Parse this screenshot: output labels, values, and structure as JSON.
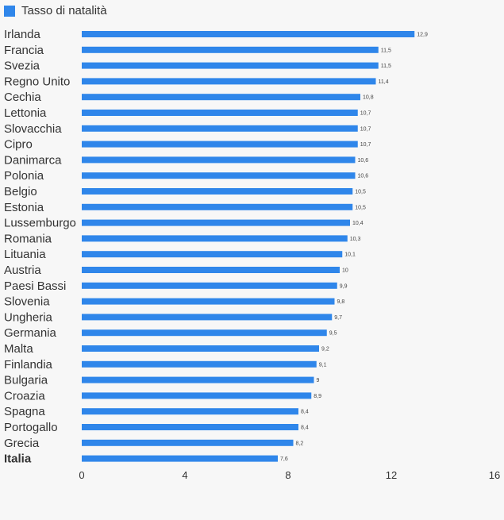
{
  "colors": {
    "bar": "#2f86ea",
    "background": "#f7f7f7",
    "text": "#333333",
    "value_text": "#444444"
  },
  "legend": {
    "label": "Tasso di natalità",
    "position": "top-left"
  },
  "chart_data": {
    "type": "bar",
    "orientation": "horizontal",
    "title": "",
    "xlabel": "",
    "ylabel": "",
    "xlim": [
      0,
      16
    ],
    "x_ticks": [
      "0",
      "4",
      "8",
      "12",
      "16"
    ],
    "grid": false,
    "series": [
      {
        "name": "Tasso di natalità"
      }
    ],
    "categories": [
      "Irlanda",
      "Francia",
      "Svezia",
      "Regno Unito",
      "Cechia",
      "Lettonia",
      "Slovacchia",
      "Cipro",
      "Danimarca",
      "Polonia",
      "Belgio",
      "Estonia",
      "Lussemburgo",
      "Romania",
      "Lituania",
      "Austria",
      "Paesi Bassi",
      "Slovenia",
      "Ungheria",
      "Germania",
      "Malta",
      "Finlandia",
      "Bulgaria",
      "Croazia",
      "Spagna",
      "Portogallo",
      "Grecia",
      "Italia"
    ],
    "values": [
      12.9,
      11.5,
      11.5,
      11.4,
      10.8,
      10.7,
      10.7,
      10.7,
      10.6,
      10.6,
      10.5,
      10.5,
      10.4,
      10.3,
      10.1,
      10,
      9.9,
      9.8,
      9.7,
      9.5,
      9.2,
      9.1,
      9,
      8.9,
      8.4,
      8.4,
      8.2,
      7.6
    ],
    "value_labels": [
      "12,9",
      "11,5",
      "11,5",
      "11,4",
      "10,8",
      "10,7",
      "10,7",
      "10,7",
      "10,6",
      "10,6",
      "10,5",
      "10,5",
      "10,4",
      "10,3",
      "10,1",
      "10",
      "9,9",
      "9,8",
      "9,7",
      "9,5",
      "9,2",
      "9,1",
      "9",
      "8,9",
      "8,4",
      "8,4",
      "8,2",
      "7,6"
    ],
    "highlight_category": "Italia"
  }
}
